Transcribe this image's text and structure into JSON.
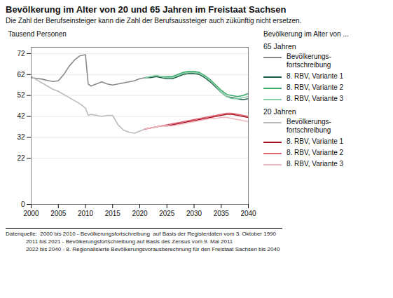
{
  "chart_data": {
    "type": "line",
    "title": "Bevölkerung im Alter von 20 und 65 Jahren im Freistaat Sachsen",
    "subtitle": "Die Zahl der Berufseinsteiger kann die Zahl der Berufsaussteiger auch zükünftig nicht ersetzen.",
    "ylabel": "Tausend Personen",
    "legend_title": "Bevölkerung im Alter von ...",
    "annotations": [
      "Datenquelle:  2000 bis 2010 - Bevölkerungsfortschreibung  auf Basis der Registerdaten vom 3. Oktober 1990",
      "             2011 bis 2021 - Bevölkerungsfortschreibung auf Basis des Zensus vom 9. Mai 2011",
      "             2022 bis 2040 - 8. Regionalisierte Bevölkerungsvorausberechnung für den Freistaat Sachsen bis 2040"
    ],
    "xlim": [
      2000,
      2040
    ],
    "xticks": [
      2000,
      2005,
      2010,
      2015,
      2020,
      2025,
      2030,
      2035,
      2040
    ],
    "ylim": [
      0,
      75
    ],
    "yticks": [
      0,
      22,
      32,
      42,
      52,
      62,
      72
    ],
    "grid": "y",
    "series": [
      {
        "name": "Bevölkerungs-\nfortschreibung",
        "group": "65 Jahren",
        "color": "#888888",
        "x": [
          2000,
          2001,
          2002,
          2003,
          2004,
          2005,
          2006,
          2007,
          2008,
          2009,
          2010,
          2010.5,
          2011,
          2012,
          2013,
          2014,
          2015,
          2016,
          2017,
          2018,
          2019,
          2020,
          2021
        ],
        "values": [
          60.5,
          60.2,
          59.8,
          59.2,
          58.7,
          59.0,
          62.0,
          66.0,
          69.0,
          71.0,
          71.5,
          57.5,
          56.5,
          57.5,
          58.5,
          57.5,
          57.0,
          57.5,
          58.0,
          58.5,
          59.0,
          60.0,
          60.5
        ]
      },
      {
        "name": "8. RBV, Variante 1",
        "group": "65 Jahren",
        "color": "#1a5c40",
        "x": [
          2021,
          2022,
          2023,
          2024,
          2025,
          2026,
          2027,
          2028,
          2029,
          2030,
          2031,
          2032,
          2033,
          2034,
          2035,
          2036,
          2037,
          2038,
          2039,
          2040
        ],
        "values": [
          60.5,
          60.5,
          61.0,
          60.5,
          60.0,
          60.0,
          61.0,
          62.0,
          62.5,
          62.5,
          62.0,
          60.5,
          58.5,
          56.0,
          53.5,
          51.5,
          51.0,
          50.5,
          50.0,
          50.5
        ]
      },
      {
        "name": "8. RBV, Variante 2",
        "group": "65 Jahren",
        "color": "#3aaa6a",
        "x": [
          2021,
          2022,
          2023,
          2024,
          2025,
          2026,
          2027,
          2028,
          2029,
          2030,
          2031,
          2032,
          2033,
          2034,
          2035,
          2036,
          2037,
          2038,
          2039,
          2040
        ],
        "values": [
          60.5,
          61.0,
          61.5,
          61.0,
          61.0,
          61.0,
          62.0,
          63.0,
          63.5,
          63.5,
          63.0,
          61.5,
          59.5,
          57.0,
          54.5,
          52.5,
          52.0,
          51.5,
          52.0,
          53.0
        ]
      },
      {
        "name": "8. RBV, Variante 3",
        "group": "65 Jahren",
        "color": "#88ccaa",
        "x": [
          2021,
          2022,
          2023,
          2024,
          2025,
          2026,
          2027,
          2028,
          2029,
          2030,
          2031,
          2032,
          2033,
          2034,
          2035,
          2036,
          2037,
          2038,
          2039,
          2040
        ],
        "values": [
          60.5,
          61.0,
          61.5,
          61.0,
          60.5,
          60.5,
          61.5,
          62.5,
          63.0,
          63.0,
          62.5,
          61.0,
          59.0,
          56.5,
          53.5,
          51.5,
          50.5,
          50.5,
          51.0,
          51.5
        ]
      },
      {
        "name": "Bevölkerungs-\nfortschreibung",
        "group": "20 Jahren",
        "color": "#bbbbbb",
        "x": [
          2000,
          2001,
          2002,
          2003,
          2004,
          2005,
          2006,
          2007,
          2008,
          2009,
          2010,
          2010.5,
          2011,
          2012,
          2013,
          2014,
          2015,
          2016,
          2017,
          2018,
          2019,
          2020,
          2021
        ],
        "values": [
          61.0,
          59.5,
          58.0,
          56.5,
          55.0,
          54.0,
          52.5,
          51.0,
          49.5,
          48.0,
          46.0,
          42.5,
          43.0,
          42.5,
          42.0,
          42.5,
          42.5,
          38.0,
          35.5,
          34.5,
          34.0,
          35.0,
          36.0
        ]
      },
      {
        "name": "8. RBV, Variante 1",
        "group": "20 Jahren",
        "color": "#aa1122",
        "x": [
          2021,
          2022,
          2023,
          2024,
          2025,
          2026,
          2027,
          2028,
          2029,
          2030,
          2031,
          2032,
          2033,
          2034,
          2035,
          2036,
          2037,
          2038,
          2039,
          2040
        ],
        "values": [
          36.0,
          36.5,
          37.0,
          37.5,
          37.5,
          38.0,
          38.5,
          39.0,
          39.5,
          40.0,
          40.5,
          41.0,
          41.5,
          42.0,
          42.5,
          43.0,
          43.0,
          42.5,
          42.0,
          41.5
        ]
      },
      {
        "name": "8. RBV, Variante 2",
        "group": "20 Jahren",
        "color": "#dd6677",
        "x": [
          2021,
          2022,
          2023,
          2024,
          2025,
          2026,
          2027,
          2028,
          2029,
          2030,
          2031,
          2032,
          2033,
          2034,
          2035,
          2036,
          2037,
          2038,
          2039,
          2040
        ],
        "values": [
          36.0,
          36.5,
          37.0,
          37.5,
          38.0,
          38.5,
          39.0,
          39.5,
          40.0,
          40.5,
          41.0,
          41.5,
          42.0,
          42.5,
          43.0,
          43.5,
          43.5,
          43.0,
          42.5,
          42.0
        ]
      },
      {
        "name": "8. RBV, Variante 3",
        "group": "20 Jahren",
        "color": "#eeb8c0",
        "x": [
          2021,
          2022,
          2023,
          2024,
          2025,
          2026,
          2027,
          2028,
          2029,
          2030,
          2031,
          2032,
          2033,
          2034,
          2035,
          2036,
          2037,
          2038,
          2039,
          2040
        ],
        "values": [
          36.0,
          36.5,
          37.0,
          37.5,
          37.5,
          37.5,
          38.0,
          38.5,
          39.0,
          39.5,
          40.0,
          40.5,
          41.0,
          41.0,
          41.5,
          41.5,
          41.0,
          40.5,
          40.0,
          39.5
        ]
      }
    ]
  }
}
